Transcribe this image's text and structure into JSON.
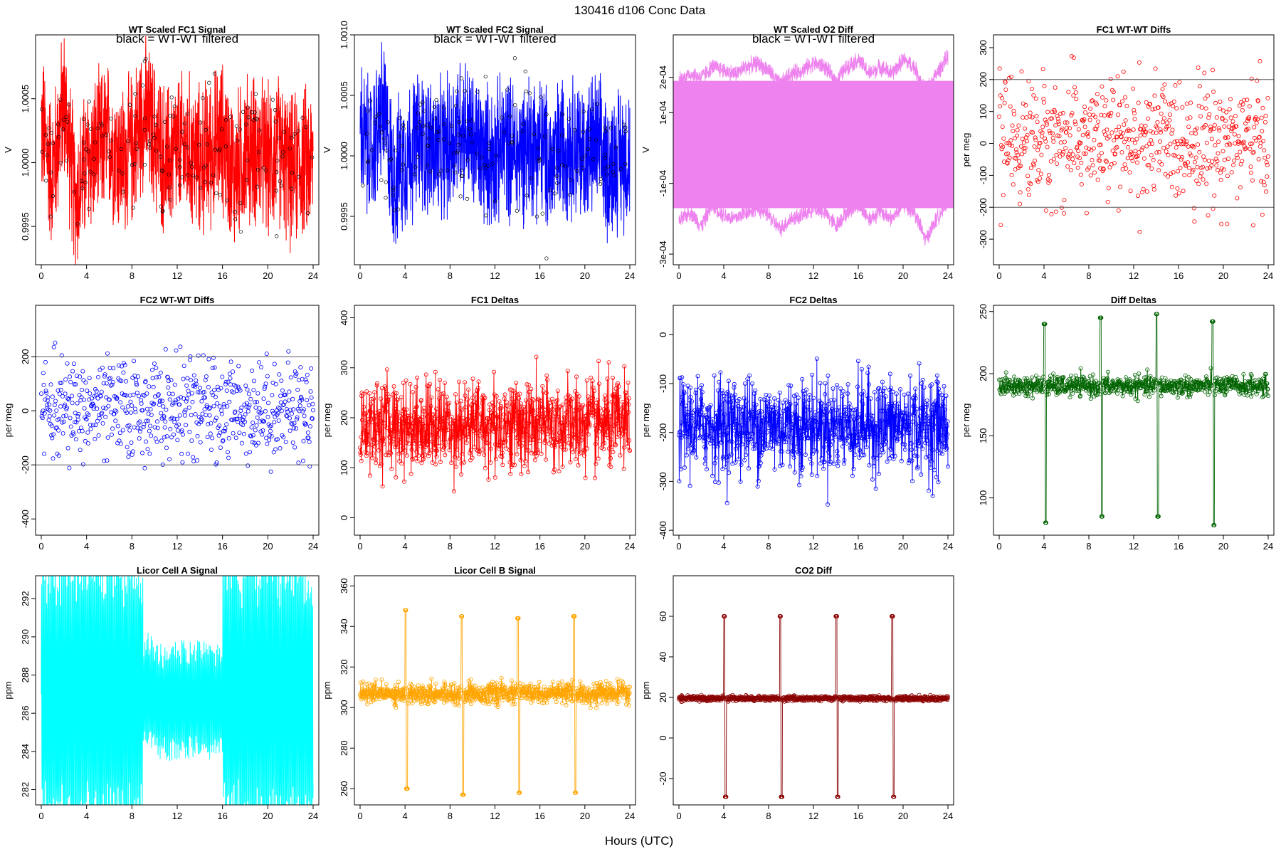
{
  "page": {
    "title": "130416    d106    Conc Data",
    "xlabel": "Hours (UTC)"
  },
  "chart_data": [
    {
      "id": "p1",
      "type": "line",
      "title": "WT Scaled FC1 Signal",
      "annotation": "black = WT-WT filtered",
      "ylabel": "V",
      "xlim": [
        0,
        24
      ],
      "ylim": [
        0.9992,
        1.001
      ],
      "x_ticks": [
        0,
        4,
        8,
        12,
        16,
        20,
        24
      ],
      "y_ticks": [
        0.9995,
        1.0,
        1.0005
      ],
      "y_tick_labels": [
        "0.9995",
        "1.0000",
        "1.0005"
      ],
      "series": [
        {
          "name": "signal",
          "color": "#ff0000",
          "style": "band",
          "center_x": [
            0,
            1,
            2,
            3,
            4,
            5,
            6,
            7,
            8,
            9,
            10,
            11,
            12,
            13,
            14,
            15,
            16,
            17,
            18,
            19,
            20,
            21,
            22,
            23,
            24
          ],
          "center": [
            1.0003,
            0.9999,
            1.0005,
            0.9997,
            1.0,
            1.0001,
            1.0002,
            1.0,
            1.0001,
            1.0004,
            1.0002,
            1.0,
            1.0001,
            1.0001,
            1.0,
            1.0001,
            1.0002,
            0.9999,
            1.0001,
            1.0001,
            1.0,
            1.0001,
            0.9999,
            1.0,
            1.0
          ],
          "amplitude": 0.0005
        },
        {
          "name": "filtered",
          "color": "#000000",
          "style": "points",
          "center": [
            1.0002,
            1.0,
            1.0004,
            0.9998,
            1.0,
            1.0001,
            1.0001,
            1.0,
            1.0001,
            1.0003,
            1.0001,
            1.0,
            1.0001,
            1.0001,
            1.0,
            1.0001,
            1.0001,
            0.9999,
            1.0001,
            1.0001,
            1.0,
            1.0001,
            0.9999,
            1.0,
            1.0
          ],
          "spread": 0.00025
        }
      ]
    },
    {
      "id": "p2",
      "type": "line",
      "title": "WT Scaled FC2 Signal",
      "annotation": "black = WT-WT filtered",
      "ylabel": "V",
      "xlim": [
        0,
        24
      ],
      "ylim": [
        0.9991,
        1.001
      ],
      "x_ticks": [
        0,
        4,
        8,
        12,
        16,
        20,
        24
      ],
      "y_ticks": [
        0.9995,
        1.0,
        1.0005,
        1.001
      ],
      "y_tick_labels": [
        "0.9995",
        "1.0000",
        "1.0005",
        "1.0010"
      ],
      "series": [
        {
          "name": "signal",
          "color": "#0000ff",
          "style": "band",
          "center_x": [
            0,
            1,
            2,
            3,
            4,
            5,
            6,
            7,
            8,
            9,
            10,
            11,
            12,
            13,
            14,
            15,
            16,
            17,
            18,
            19,
            20,
            21,
            22,
            23,
            24
          ],
          "center": [
            1.0002,
            1.0,
            1.0004,
            0.9998,
            1.0,
            1.0001,
            1.0001,
            1.0,
            1.0001,
            1.0003,
            1.0001,
            1.0,
            1.0,
            1.0001,
            1.0,
            1.0001,
            1.0001,
            0.9999,
            1.0001,
            1.0001,
            1.0,
            1.0001,
            0.9999,
            1.0,
            1.0
          ],
          "amplitude": 0.0005
        },
        {
          "name": "filtered",
          "color": "#000000",
          "style": "points",
          "center": [
            1.0002,
            1.0,
            1.0003,
            0.9998,
            1.0,
            1.0001,
            1.0001,
            1.0,
            1.0001,
            1.0002,
            1.0001,
            1.0,
            1.0,
            1.0001,
            1.0,
            1.0001,
            1.0001,
            0.9999,
            1.0001,
            1.0001,
            1.0,
            1.0001,
            0.9999,
            1.0,
            1.0
          ],
          "spread": 0.00025
        }
      ]
    },
    {
      "id": "p3",
      "type": "line",
      "title": "WT Scaled O2 Diff",
      "annotation": "black = WT-WT filtered",
      "ylabel": "V",
      "xlim": [
        0,
        24
      ],
      "ylim": [
        -0.00033,
        0.00032
      ],
      "x_ticks": [
        0,
        4,
        8,
        12,
        16,
        20,
        24
      ],
      "y_ticks": [
        -0.0003,
        -0.0001,
        0.0001,
        0.0002
      ],
      "y_tick_labels": [
        "-3e-04",
        "-1e-04",
        "1e-04",
        "2e-04"
      ],
      "series": [
        {
          "name": "upper",
          "color": "#ee82ee",
          "style": "band",
          "center_x": [
            0,
            1,
            2,
            3,
            4,
            5,
            6,
            7,
            8,
            9,
            10,
            11,
            12,
            13,
            14,
            15,
            16,
            17,
            18,
            19,
            20,
            21,
            22,
            23,
            24
          ],
          "center": [
            0.00019,
            0.00021,
            0.0002,
            0.00023,
            0.00022,
            0.00021,
            0.00023,
            0.00024,
            0.00022,
            0.00018,
            0.00021,
            0.00022,
            0.00024,
            0.00023,
            0.00019,
            0.00023,
            0.00025,
            0.00021,
            0.00023,
            0.00021,
            0.00025,
            0.00023,
            0.00016,
            0.00021,
            0.00026
          ],
          "amplitude": 2e-05
        },
        {
          "name": "lower",
          "color": "#ee82ee",
          "style": "band",
          "center_x": [
            0,
            1,
            2,
            3,
            4,
            5,
            6,
            7,
            8,
            9,
            10,
            11,
            12,
            13,
            14,
            15,
            16,
            17,
            18,
            19,
            20,
            21,
            22,
            23,
            24
          ],
          "center": [
            -0.00021,
            -0.00018,
            -0.00022,
            -0.00016,
            -0.00019,
            -0.0002,
            -0.00018,
            -0.00017,
            -0.00019,
            -0.00023,
            -0.0002,
            -0.00019,
            -0.00017,
            -0.00018,
            -0.00022,
            -0.00018,
            -0.00016,
            -0.0002,
            -0.00018,
            -0.0002,
            -0.00016,
            -0.00018,
            -0.00026,
            -0.0002,
            -0.00015
          ],
          "amplitude": 2e-05
        },
        {
          "name": "fill",
          "color": "#ee82ee",
          "style": "fill",
          "y0": -0.00017,
          "y1": 0.00019
        }
      ]
    },
    {
      "id": "p4",
      "type": "scatter",
      "title": "FC1 WT-WT Diffs",
      "ylabel": "per meg",
      "xlim": [
        0,
        24
      ],
      "ylim": [
        -380,
        340
      ],
      "x_ticks": [
        0,
        4,
        8,
        12,
        16,
        20,
        24
      ],
      "y_ticks": [
        -300,
        -200,
        -100,
        0,
        100,
        200,
        300
      ],
      "y_tick_labels": [
        "-300",
        "-200",
        "-100",
        "0",
        "100",
        "200",
        "300"
      ],
      "hlines": [
        200,
        -200
      ],
      "series": [
        {
          "name": "diffs",
          "color": "#ff0000",
          "n": 650,
          "mean": 10,
          "sd": 95
        }
      ]
    },
    {
      "id": "p5",
      "type": "scatter",
      "title": "FC2 WT-WT Diffs",
      "ylabel": "per meg",
      "xlim": [
        0,
        24
      ],
      "ylim": [
        -460,
        390
      ],
      "x_ticks": [
        0,
        4,
        8,
        12,
        16,
        20,
        24
      ],
      "y_ticks": [
        -400,
        -200,
        0,
        200
      ],
      "y_tick_labels": [
        "-400",
        "-200",
        "0",
        "200"
      ],
      "hlines": [
        200,
        -200
      ],
      "series": [
        {
          "name": "diffs",
          "color": "#0000ff",
          "n": 650,
          "mean": 5,
          "sd": 90
        }
      ]
    },
    {
      "id": "p6",
      "type": "line",
      "title": "FC1 Deltas",
      "ylabel": "per meg",
      "xlim": [
        0,
        24
      ],
      "ylim": [
        -35,
        425
      ],
      "x_ticks": [
        0,
        4,
        8,
        12,
        16,
        20,
        24
      ],
      "y_ticks": [
        0,
        100,
        200,
        300,
        400
      ],
      "y_tick_labels": [
        "0",
        "100",
        "200",
        "300",
        "400"
      ],
      "series": [
        {
          "name": "deltas",
          "color": "#ff0000",
          "n": 900,
          "mean": 185,
          "sd": 45
        }
      ]
    },
    {
      "id": "p7",
      "type": "line",
      "title": "FC2 Deltas",
      "ylabel": "per meg",
      "xlim": [
        0,
        24
      ],
      "ylim": [
        -410,
        60
      ],
      "x_ticks": [
        0,
        4,
        8,
        12,
        16,
        20,
        24
      ],
      "y_ticks": [
        -400,
        -300,
        -200,
        -100,
        0
      ],
      "y_tick_labels": [
        "-400",
        "-300",
        "-200",
        "-100",
        "0"
      ],
      "series": [
        {
          "name": "deltas",
          "color": "#0000ff",
          "n": 900,
          "mean": -185,
          "sd": 48
        }
      ]
    },
    {
      "id": "p8",
      "type": "line",
      "title": "Diff Deltas",
      "ylabel": "per meg",
      "xlim": [
        0,
        24
      ],
      "ylim": [
        70,
        255
      ],
      "x_ticks": [
        0,
        4,
        8,
        12,
        16,
        20,
        24
      ],
      "y_ticks": [
        100,
        150,
        200,
        250
      ],
      "y_tick_labels": [
        "100",
        "150",
        "200",
        "250"
      ],
      "series": [
        {
          "name": "deltas",
          "color": "#006400",
          "n": 700,
          "mean": 190,
          "sd": 4,
          "spikes": [
            {
              "x": 4.1,
              "lo": 80,
              "hi": 240
            },
            {
              "x": 9.1,
              "lo": 85,
              "hi": 245
            },
            {
              "x": 14.1,
              "lo": 85,
              "hi": 248
            },
            {
              "x": 19.1,
              "lo": 78,
              "hi": 242
            }
          ]
        }
      ]
    },
    {
      "id": "p9",
      "type": "line",
      "title": "Licor Cell A Signal",
      "ylabel": "ppm",
      "xlim": [
        0,
        24
      ],
      "ylim": [
        281.2,
        293.2
      ],
      "x_ticks": [
        0,
        4,
        8,
        12,
        16,
        20,
        24
      ],
      "y_ticks": [
        282,
        284,
        286,
        288,
        290,
        292
      ],
      "y_tick_labels": [
        "282",
        "284",
        "286",
        "288",
        "290",
        "292"
      ],
      "series": [
        {
          "name": "signal",
          "color": "#00ffff",
          "style": "oscillation"
        }
      ]
    },
    {
      "id": "p10",
      "type": "line",
      "title": "Licor Cell B Signal",
      "ylabel": "ppm",
      "xlim": [
        0,
        24
      ],
      "ylim": [
        252,
        365
      ],
      "x_ticks": [
        0,
        4,
        8,
        12,
        16,
        20,
        24
      ],
      "y_ticks": [
        260,
        280,
        300,
        320,
        340,
        360
      ],
      "y_tick_labels": [
        "260",
        "280",
        "300",
        "320",
        "340",
        "360"
      ],
      "series": [
        {
          "name": "signal",
          "color": "#ffa500",
          "n": 900,
          "mean": 307,
          "sd": 2.5,
          "spikes": [
            {
              "x": 4.1,
              "lo": 260,
              "hi": 348
            },
            {
              "x": 9.1,
              "lo": 257,
              "hi": 345
            },
            {
              "x": 14.1,
              "lo": 258,
              "hi": 344
            },
            {
              "x": 19.1,
              "lo": 258,
              "hi": 345
            }
          ]
        }
      ]
    },
    {
      "id": "p11",
      "type": "line",
      "title": "CO2 Diff",
      "ylabel": "ppm",
      "xlim": [
        0,
        24
      ],
      "ylim": [
        -33,
        80
      ],
      "x_ticks": [
        0,
        4,
        8,
        12,
        16,
        20,
        24
      ],
      "y_ticks": [
        -20,
        0,
        20,
        40,
        60
      ],
      "y_tick_labels": [
        "-20",
        "0",
        "20",
        "40",
        "60"
      ],
      "series": [
        {
          "name": "diff",
          "color": "#8b0000",
          "n": 900,
          "mean": 19.5,
          "sd": 0.6,
          "spikes": [
            {
              "x": 4.1,
              "lo": -29,
              "hi": 60
            },
            {
              "x": 9.1,
              "lo": -29,
              "hi": 60
            },
            {
              "x": 14.1,
              "lo": -29,
              "hi": 60
            },
            {
              "x": 19.1,
              "lo": -29,
              "hi": 60
            }
          ]
        }
      ]
    }
  ]
}
